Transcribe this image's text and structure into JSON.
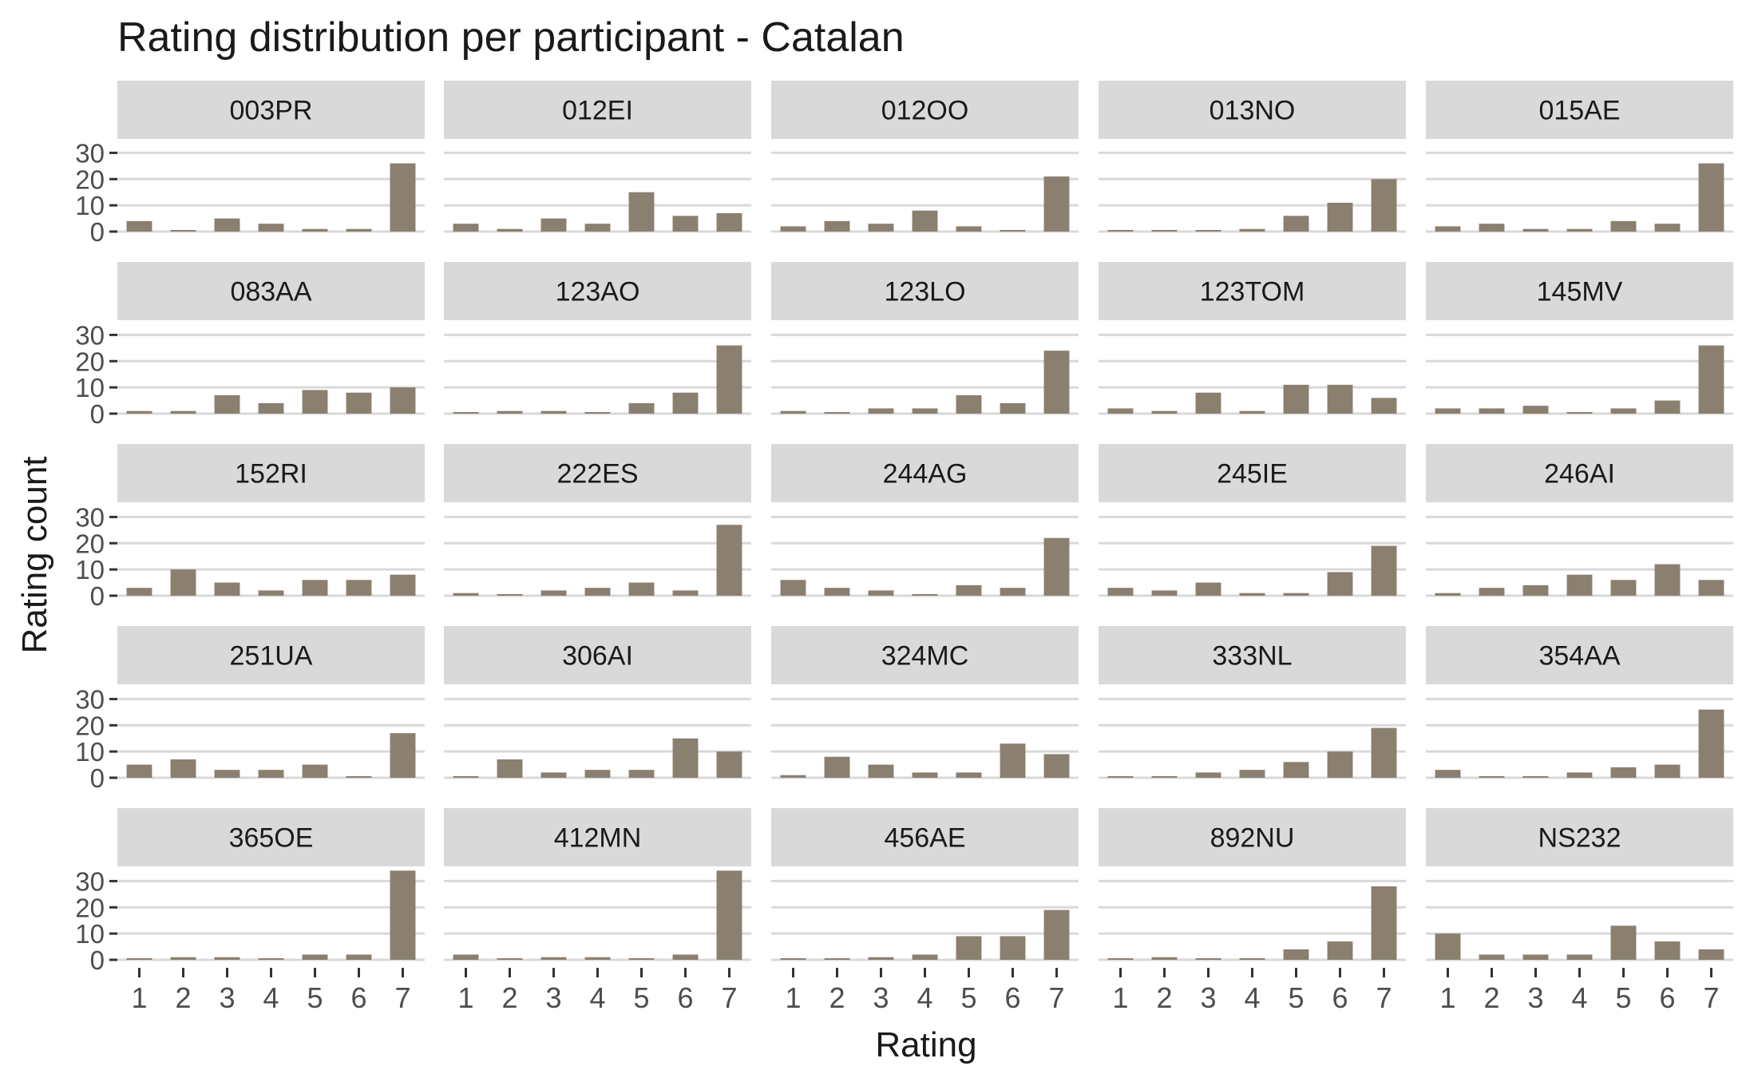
{
  "chart_data": {
    "type": "bar",
    "title": "Rating distribution per participant - Catalan",
    "xlabel": "Rating",
    "ylabel": "Rating count",
    "categories": [
      "1",
      "2",
      "3",
      "4",
      "5",
      "6",
      "7"
    ],
    "ylim": [
      0,
      35
    ],
    "yticks": [
      "0",
      "10",
      "20",
      "30"
    ],
    "grid": true,
    "bar_color": "#8b7f70",
    "strip_color": "#d9d9d9",
    "grid_color": "#d9d9d9",
    "facets": [
      {
        "name": "003PR",
        "values": [
          4,
          0,
          5,
          3,
          1,
          1,
          26
        ]
      },
      {
        "name": "012EI",
        "values": [
          3,
          1,
          5,
          3,
          15,
          6,
          7
        ]
      },
      {
        "name": "012OO",
        "values": [
          2,
          4,
          3,
          8,
          2,
          0,
          21
        ]
      },
      {
        "name": "013NO",
        "values": [
          0,
          0,
          0,
          1,
          6,
          11,
          20
        ]
      },
      {
        "name": "015AE",
        "values": [
          2,
          3,
          1,
          1,
          4,
          3,
          26
        ]
      },
      {
        "name": "083AA",
        "values": [
          1,
          1,
          7,
          4,
          9,
          8,
          10
        ]
      },
      {
        "name": "123AO",
        "values": [
          0,
          1,
          1,
          0,
          4,
          8,
          26
        ]
      },
      {
        "name": "123LO",
        "values": [
          1,
          0,
          2,
          2,
          7,
          4,
          24
        ]
      },
      {
        "name": "123TOM",
        "values": [
          2,
          1,
          8,
          1,
          11,
          11,
          6
        ]
      },
      {
        "name": "145MV",
        "values": [
          2,
          2,
          3,
          0,
          2,
          5,
          26
        ]
      },
      {
        "name": "152RI",
        "values": [
          3,
          10,
          5,
          2,
          6,
          6,
          8
        ]
      },
      {
        "name": "222ES",
        "values": [
          1,
          0,
          2,
          3,
          5,
          2,
          27
        ]
      },
      {
        "name": "244AG",
        "values": [
          6,
          3,
          2,
          0,
          4,
          3,
          22
        ]
      },
      {
        "name": "245IE",
        "values": [
          3,
          2,
          5,
          1,
          1,
          9,
          19
        ]
      },
      {
        "name": "246AI",
        "values": [
          1,
          3,
          4,
          8,
          6,
          12,
          6
        ]
      },
      {
        "name": "251UA",
        "values": [
          5,
          7,
          3,
          3,
          5,
          0,
          17
        ]
      },
      {
        "name": "306AI",
        "values": [
          0,
          7,
          2,
          3,
          3,
          15,
          10
        ]
      },
      {
        "name": "324MC",
        "values": [
          1,
          8,
          5,
          2,
          2,
          13,
          9
        ]
      },
      {
        "name": "333NL",
        "values": [
          0,
          0,
          2,
          3,
          6,
          10,
          19
        ]
      },
      {
        "name": "354AA",
        "values": [
          3,
          0,
          0,
          2,
          4,
          5,
          26
        ]
      },
      {
        "name": "365OE",
        "values": [
          0,
          1,
          1,
          0,
          2,
          2,
          34
        ]
      },
      {
        "name": "412MN",
        "values": [
          2,
          0,
          1,
          1,
          0,
          2,
          34
        ]
      },
      {
        "name": "456AE",
        "values": [
          0,
          0,
          1,
          2,
          9,
          9,
          19
        ]
      },
      {
        "name": "892NU",
        "values": [
          0,
          1,
          0,
          0,
          4,
          7,
          28
        ]
      },
      {
        "name": "NS232",
        "values": [
          10,
          2,
          2,
          2,
          13,
          7,
          4
        ]
      }
    ]
  }
}
